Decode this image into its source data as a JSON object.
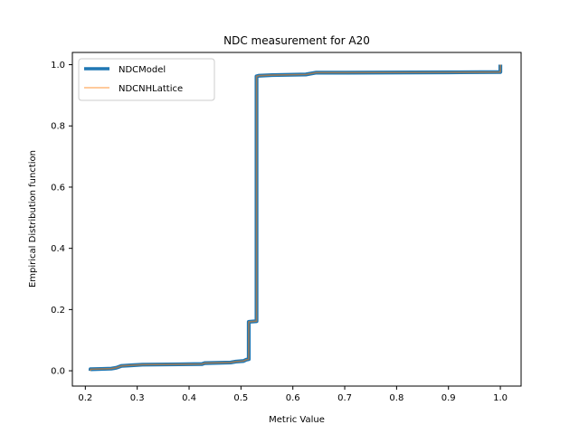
{
  "chart_data": {
    "type": "line",
    "title": "NDC measurement for A20",
    "xlabel": "Metric Value",
    "ylabel": "Empirical Distribution function",
    "xlim": [
      0.175,
      1.04
    ],
    "ylim": [
      -0.05,
      1.04
    ],
    "x_ticks": [
      0.2,
      0.3,
      0.4,
      0.5,
      0.6,
      0.7,
      0.8,
      0.9,
      1.0
    ],
    "x_tick_labels": [
      "0.2",
      "0.3",
      "0.4",
      "0.5",
      "0.6",
      "0.7",
      "0.8",
      "0.9",
      "1.0"
    ],
    "y_ticks": [
      0.0,
      0.2,
      0.4,
      0.6,
      0.8,
      1.0
    ],
    "y_tick_labels": [
      "0.0",
      "0.2",
      "0.4",
      "0.6",
      "0.8",
      "1.0"
    ],
    "grid": false,
    "legend_position": "top-left",
    "series": [
      {
        "name": "NDCModel",
        "color": "#1f77b4",
        "points": [
          [
            0.21,
            0.0
          ],
          [
            0.21,
            0.005
          ],
          [
            0.23,
            0.006
          ],
          [
            0.25,
            0.007
          ],
          [
            0.26,
            0.01
          ],
          [
            0.27,
            0.016
          ],
          [
            0.29,
            0.018
          ],
          [
            0.31,
            0.02
          ],
          [
            0.38,
            0.021
          ],
          [
            0.425,
            0.022
          ],
          [
            0.43,
            0.025
          ],
          [
            0.48,
            0.027
          ],
          [
            0.49,
            0.03
          ],
          [
            0.505,
            0.032
          ],
          [
            0.51,
            0.036
          ],
          [
            0.515,
            0.038
          ],
          [
            0.515,
            0.16
          ],
          [
            0.53,
            0.162
          ],
          [
            0.53,
            0.962
          ],
          [
            0.535,
            0.964
          ],
          [
            0.56,
            0.966
          ],
          [
            0.625,
            0.968
          ],
          [
            0.645,
            0.974
          ],
          [
            0.7,
            0.974
          ],
          [
            0.9,
            0.975
          ],
          [
            1.0,
            0.976
          ],
          [
            1.0,
            1.0
          ]
        ]
      },
      {
        "name": "NDCNHLattice",
        "color": "#ffbb78",
        "points": [
          [
            0.21,
            0.0
          ],
          [
            0.21,
            0.005
          ],
          [
            0.23,
            0.006
          ],
          [
            0.25,
            0.007
          ],
          [
            0.26,
            0.01
          ],
          [
            0.27,
            0.016
          ],
          [
            0.29,
            0.018
          ],
          [
            0.31,
            0.02
          ],
          [
            0.38,
            0.021
          ],
          [
            0.425,
            0.022
          ],
          [
            0.43,
            0.025
          ],
          [
            0.48,
            0.027
          ],
          [
            0.49,
            0.03
          ],
          [
            0.505,
            0.032
          ],
          [
            0.51,
            0.036
          ],
          [
            0.515,
            0.038
          ],
          [
            0.515,
            0.16
          ],
          [
            0.53,
            0.162
          ],
          [
            0.53,
            0.962
          ],
          [
            0.535,
            0.964
          ],
          [
            0.56,
            0.966
          ],
          [
            0.625,
            0.968
          ],
          [
            0.645,
            0.974
          ],
          [
            0.7,
            0.974
          ],
          [
            0.9,
            0.975
          ],
          [
            1.0,
            0.976
          ],
          [
            1.0,
            1.0
          ]
        ]
      }
    ]
  }
}
